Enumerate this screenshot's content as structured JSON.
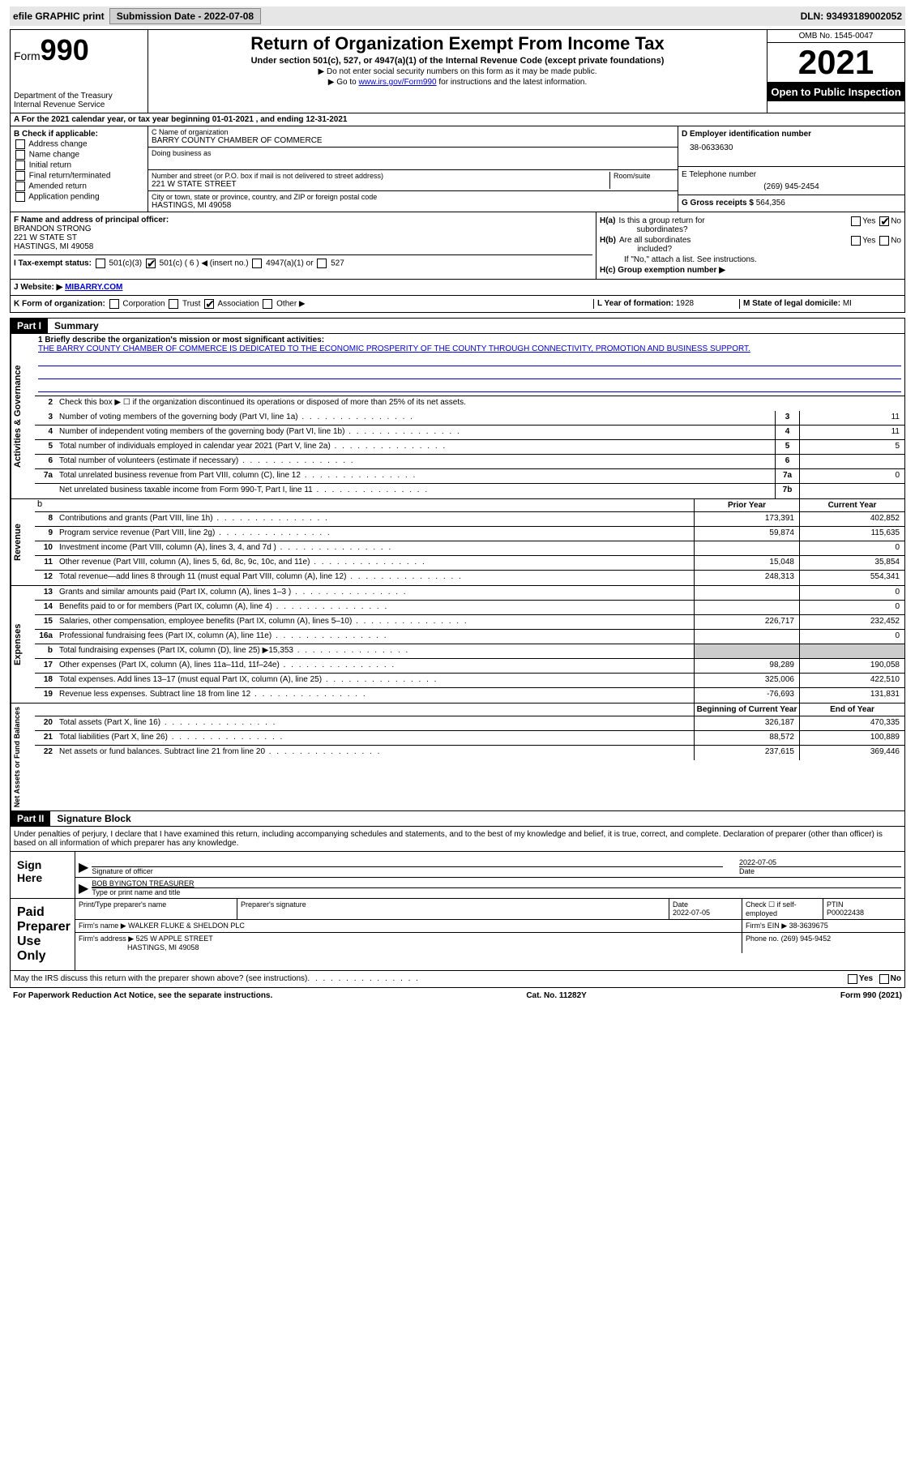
{
  "top": {
    "efile": "efile GRAPHIC print",
    "submission_label": "Submission Date - 2022-07-08",
    "dln": "DLN: 93493189002052"
  },
  "header": {
    "form_prefix": "Form",
    "form_number": "990",
    "dept": "Department of the Treasury",
    "irs": "Internal Revenue Service",
    "title": "Return of Organization Exempt From Income Tax",
    "subtitle": "Under section 501(c), 527, or 4947(a)(1) of the Internal Revenue Code (except private foundations)",
    "inst1": "▶ Do not enter social security numbers on this form as it may be made public.",
    "inst2_prefix": "▶ Go to ",
    "inst2_link": "www.irs.gov/Form990",
    "inst2_suffix": " for instructions and the latest information.",
    "omb": "OMB No. 1545-0047",
    "year": "2021",
    "open": "Open to Public Inspection"
  },
  "section_a": "A For the 2021 calendar year, or tax year beginning 01-01-2021   , and ending 12-31-2021",
  "section_b": {
    "label": "B Check if applicable:",
    "opts": [
      "Address change",
      "Name change",
      "Initial return",
      "Final return/terminated",
      "Amended return",
      "Application pending"
    ]
  },
  "section_c": {
    "name_label": "C Name of organization",
    "name": "BARRY COUNTY CHAMBER OF COMMERCE",
    "dba_label": "Doing business as",
    "dba": "",
    "street_label": "Number and street (or P.O. box if mail is not delivered to street address)",
    "room_label": "Room/suite",
    "street": "221 W STATE STREET",
    "city_label": "City or town, state or province, country, and ZIP or foreign postal code",
    "city": "HASTINGS, MI  49058"
  },
  "section_d": {
    "label": "D Employer identification number",
    "value": "38-0633630"
  },
  "section_e": {
    "label": "E Telephone number",
    "value": "(269) 945-2454"
  },
  "section_g": {
    "label": "G Gross receipts $",
    "value": "564,356"
  },
  "section_f": {
    "label": "F  Name and address of principal officer:",
    "name": "BRANDON STRONG",
    "street": "221 W STATE ST",
    "city": "HASTINGS, MI  49058"
  },
  "section_h": {
    "ha": "H(a)  Is this a group return for subordinates?",
    "ha_no": "No",
    "hb": "H(b)  Are all subordinates included?",
    "hb_note": "If \"No,\" attach a list. See instructions.",
    "hc": "H(c)  Group exemption number ▶"
  },
  "tax_status": {
    "label": "I   Tax-exempt status:",
    "opt1": "501(c)(3)",
    "opt2": "501(c) ( 6 ) ◀ (insert no.)",
    "opt3": "4947(a)(1) or",
    "opt4": "527"
  },
  "website": {
    "label": "J  Website: ▶",
    "value": "MIBARRY.COM"
  },
  "section_k": {
    "label": "K Form of organization:",
    "opts": [
      "Corporation",
      "Trust",
      "Association",
      "Other ▶"
    ],
    "checked_idx": 2
  },
  "section_l": {
    "label": "L Year of formation:",
    "value": "1928"
  },
  "section_m": {
    "label": "M State of legal domicile:",
    "value": "MI"
  },
  "part1": {
    "header": "Part I",
    "title": "Summary",
    "line1_label": "1  Briefly describe the organization's mission or most significant activities:",
    "mission": "THE BARRY COUNTY CHAMBER OF COMMERCE IS DEDICATED TO THE ECONOMIC PROSPERITY OF THE COUNTY THROUGH CONNECTIVITY, PROMOTION AND BUSINESS SUPPORT.",
    "line2": "Check this box ▶ ☐  if the organization discontinued its operations or disposed of more than 25% of its net assets.",
    "gov_label": "Activities & Governance",
    "rev_label": "Revenue",
    "exp_label": "Expenses",
    "net_label": "Net Assets or Fund Balances",
    "lines_gov": [
      {
        "n": "3",
        "t": "Number of voting members of the governing body (Part VI, line 1a)",
        "box": "3",
        "v": "11"
      },
      {
        "n": "4",
        "t": "Number of independent voting members of the governing body (Part VI, line 1b)",
        "box": "4",
        "v": "11"
      },
      {
        "n": "5",
        "t": "Total number of individuals employed in calendar year 2021 (Part V, line 2a)",
        "box": "5",
        "v": "5"
      },
      {
        "n": "6",
        "t": "Total number of volunteers (estimate if necessary)",
        "box": "6",
        "v": ""
      },
      {
        "n": "7a",
        "t": "Total unrelated business revenue from Part VIII, column (C), line 12",
        "box": "7a",
        "v": "0"
      },
      {
        "n": "",
        "t": "Net unrelated business taxable income from Form 990-T, Part I, line 11",
        "box": "7b",
        "v": ""
      }
    ],
    "col_prior": "Prior Year",
    "col_current": "Current Year",
    "lines_rev": [
      {
        "n": "8",
        "t": "Contributions and grants (Part VIII, line 1h)",
        "p": "173,391",
        "c": "402,852"
      },
      {
        "n": "9",
        "t": "Program service revenue (Part VIII, line 2g)",
        "p": "59,874",
        "c": "115,635"
      },
      {
        "n": "10",
        "t": "Investment income (Part VIII, column (A), lines 3, 4, and 7d )",
        "p": "",
        "c": "0"
      },
      {
        "n": "11",
        "t": "Other revenue (Part VIII, column (A), lines 5, 6d, 8c, 9c, 10c, and 11e)",
        "p": "15,048",
        "c": "35,854"
      },
      {
        "n": "12",
        "t": "Total revenue—add lines 8 through 11 (must equal Part VIII, column (A), line 12)",
        "p": "248,313",
        "c": "554,341"
      }
    ],
    "lines_exp": [
      {
        "n": "13",
        "t": "Grants and similar amounts paid (Part IX, column (A), lines 1–3 )",
        "p": "",
        "c": "0"
      },
      {
        "n": "14",
        "t": "Benefits paid to or for members (Part IX, column (A), line 4)",
        "p": "",
        "c": "0"
      },
      {
        "n": "15",
        "t": "Salaries, other compensation, employee benefits (Part IX, column (A), lines 5–10)",
        "p": "226,717",
        "c": "232,452"
      },
      {
        "n": "16a",
        "t": "Professional fundraising fees (Part IX, column (A), line 11e)",
        "p": "",
        "c": "0"
      },
      {
        "n": "b",
        "t": "Total fundraising expenses (Part IX, column (D), line 25) ▶15,353",
        "p": "shade",
        "c": "shade"
      },
      {
        "n": "17",
        "t": "Other expenses (Part IX, column (A), lines 11a–11d, 11f–24e)",
        "p": "98,289",
        "c": "190,058"
      },
      {
        "n": "18",
        "t": "Total expenses. Add lines 13–17 (must equal Part IX, column (A), line 25)",
        "p": "325,006",
        "c": "422,510"
      },
      {
        "n": "19",
        "t": "Revenue less expenses. Subtract line 18 from line 12",
        "p": "-76,693",
        "c": "131,831"
      }
    ],
    "col_begin": "Beginning of Current Year",
    "col_end": "End of Year",
    "lines_net": [
      {
        "n": "20",
        "t": "Total assets (Part X, line 16)",
        "p": "326,187",
        "c": "470,335"
      },
      {
        "n": "21",
        "t": "Total liabilities (Part X, line 26)",
        "p": "88,572",
        "c": "100,889"
      },
      {
        "n": "22",
        "t": "Net assets or fund balances. Subtract line 21 from line 20",
        "p": "237,615",
        "c": "369,446"
      }
    ]
  },
  "part2": {
    "header": "Part II",
    "title": "Signature Block",
    "declaration": "Under penalties of perjury, I declare that I have examined this return, including accompanying schedules and statements, and to the best of my knowledge and belief, it is true, correct, and complete. Declaration of preparer (other than officer) is based on all information of which preparer has any knowledge.",
    "sign_here": "Sign Here",
    "sig_officer": "Signature of officer",
    "sig_date": "2022-07-05",
    "sig_name": "BOB BYINGTON  TREASURER",
    "sig_name_label": "Type or print name and title",
    "paid_label": "Paid Preparer Use Only",
    "prep_name_label": "Print/Type preparer's name",
    "prep_sig_label": "Preparer's signature",
    "prep_date_label": "Date",
    "prep_date": "2022-07-05",
    "prep_check_label": "Check ☐ if self-employed",
    "ptin_label": "PTIN",
    "ptin": "P00022438",
    "firm_name_label": "Firm's name    ▶",
    "firm_name": "WALKER FLUKE & SHELDON PLC",
    "firm_ein_label": "Firm's EIN ▶",
    "firm_ein": "38-3639675",
    "firm_addr_label": "Firm's address ▶",
    "firm_addr1": "525 W APPLE STREET",
    "firm_addr2": "HASTINGS, MI  49058",
    "phone_label": "Phone no.",
    "phone": "(269) 945-9452",
    "discuss": "May the IRS discuss this return with the preparer shown above? (see instructions)",
    "yes": "Yes",
    "no": "No"
  },
  "footer": {
    "left": "For Paperwork Reduction Act Notice, see the separate instructions.",
    "mid": "Cat. No. 11282Y",
    "right": "Form 990 (2021)"
  }
}
